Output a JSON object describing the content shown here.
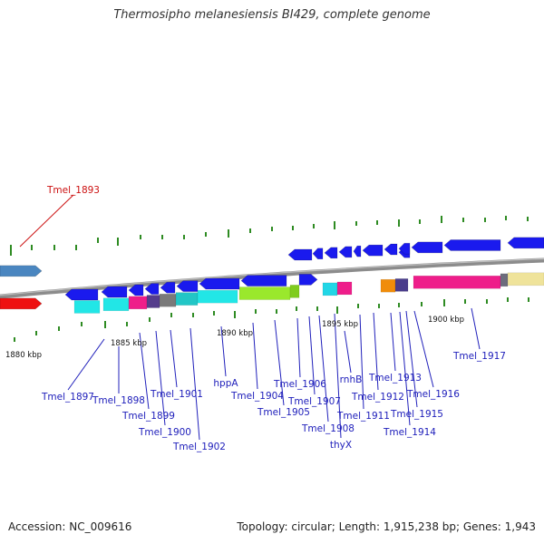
{
  "title": "Thermosipho melanesiensis BI429, complete genome",
  "footer": {
    "accession": "Accession: NC_009616",
    "summary": "Topology: circular; Length: 1,915,238 bp; Genes: 1,943"
  },
  "colors": {
    "backbone": "#8c8c8c",
    "tick": "#2e8b22",
    "forward_gene": "#1a1aee",
    "reverse_gene": "#1a1aee",
    "label": "#2020bb",
    "highlight_label": "#cc1111",
    "highlight_forward": "#4a86c0",
    "highlight_reverse": "#ee1111"
  },
  "scale_labels": [
    {
      "text": "1880 kbp"
    },
    {
      "text": "1885 kbp"
    },
    {
      "text": "1890 kbp"
    },
    {
      "text": "1895 kbp"
    },
    {
      "text": "1900 kbp"
    }
  ],
  "gene_labels": [
    {
      "text": "Tmel_1893",
      "highlight": true
    },
    {
      "text": "Tmel_1897"
    },
    {
      "text": "Tmel_1898"
    },
    {
      "text": "Tmel_1899"
    },
    {
      "text": "Tmel_1900"
    },
    {
      "text": "Tmel_1901"
    },
    {
      "text": "Tmel_1902"
    },
    {
      "text": "hppA"
    },
    {
      "text": "Tmel_1904"
    },
    {
      "text": "Tmel_1905"
    },
    {
      "text": "Tmel_1906"
    },
    {
      "text": "Tmel_1907"
    },
    {
      "text": "Tmel_1908"
    },
    {
      "text": "thyX"
    },
    {
      "text": "rnhB"
    },
    {
      "text": "Tmel_1911"
    },
    {
      "text": "Tmel_1912"
    },
    {
      "text": "Tmel_1913"
    },
    {
      "text": "Tmel_1914"
    },
    {
      "text": "Tmel_1915"
    },
    {
      "text": "Tmel_1916"
    },
    {
      "text": "Tmel_1917"
    }
  ]
}
